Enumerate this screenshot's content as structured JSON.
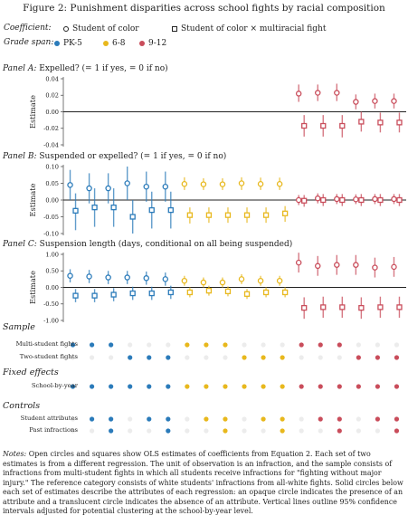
{
  "figure_title": "Figure 2: Punishment disparities across school fights by racial composition",
  "legend": {
    "coef_label": "Coefficient:",
    "coef_items": [
      {
        "label": "Student of color",
        "marker": "circle-open"
      },
      {
        "label": "Student of color × multiracial fight",
        "marker": "square-open"
      }
    ],
    "grade_label": "Grade span:",
    "grade_items": [
      {
        "label": "PK-5",
        "color": "#2b7bba"
      },
      {
        "label": "6-8",
        "color": "#e8b81d"
      },
      {
        "label": "9-12",
        "color": "#c94d5b"
      }
    ]
  },
  "panel_titles": [
    {
      "letter": "Panel A:",
      "text": " Expelled? (= 1 if yes, = 0 if no)"
    },
    {
      "letter": "Panel B:",
      "text": " Suspended or expelled? (= 1 if yes, = 0 if no)"
    },
    {
      "letter": "Panel C:",
      "text": " Suspension length (days, conditional on all being suspended)"
    }
  ],
  "chart_data": [
    {
      "type": "scatter",
      "panel": "A",
      "ylabel": "Estimate",
      "ylim": [
        -0.04,
        0.04
      ],
      "yticks": [
        -0.04,
        -0.02,
        0.0,
        0.02,
        0.04
      ],
      "ytick_labels": [
        "-0.04",
        "-0.02",
        "0.00",
        "0.02",
        "0.04"
      ],
      "groups": [
        "PK-5",
        "PK-5",
        "PK-5",
        "PK-5",
        "PK-5",
        "PK-5",
        "6-8",
        "6-8",
        "6-8",
        "6-8",
        "6-8",
        "6-8",
        "9-12",
        "9-12",
        "9-12",
        "9-12",
        "9-12",
        "9-12"
      ],
      "series": [
        {
          "name": "Student of color",
          "marker": "circle",
          "values": [
            null,
            null,
            null,
            null,
            null,
            null,
            null,
            null,
            null,
            null,
            null,
            null,
            0.022,
            0.023,
            0.023,
            0.012,
            0.013,
            0.013
          ],
          "ci_low": [
            null,
            null,
            null,
            null,
            null,
            null,
            null,
            null,
            null,
            null,
            null,
            null,
            0.012,
            0.013,
            0.013,
            0.003,
            0.004,
            0.004
          ],
          "ci_high": [
            null,
            null,
            null,
            null,
            null,
            null,
            null,
            null,
            null,
            null,
            null,
            null,
            0.033,
            0.033,
            0.034,
            0.021,
            0.022,
            0.022
          ]
        },
        {
          "name": "Student of color × multiracial fight",
          "marker": "square",
          "values": [
            null,
            null,
            null,
            null,
            null,
            null,
            null,
            null,
            null,
            null,
            null,
            null,
            -0.017,
            -0.017,
            -0.017,
            -0.012,
            -0.013,
            -0.013
          ],
          "ci_low": [
            null,
            null,
            null,
            null,
            null,
            null,
            null,
            null,
            null,
            null,
            null,
            null,
            -0.03,
            -0.03,
            -0.031,
            -0.024,
            -0.025,
            -0.025
          ],
          "ci_high": [
            null,
            null,
            null,
            null,
            null,
            null,
            null,
            null,
            null,
            null,
            null,
            null,
            -0.004,
            -0.004,
            -0.004,
            0.0,
            -0.001,
            -0.001
          ]
        }
      ]
    },
    {
      "type": "scatter",
      "panel": "B",
      "ylabel": "Estimate",
      "ylim": [
        -0.1,
        0.1
      ],
      "yticks": [
        -0.1,
        -0.05,
        0.0,
        0.05,
        0.1
      ],
      "ytick_labels": [
        "-0.10",
        "-0.05",
        "0.00",
        "0.05",
        "0.10"
      ],
      "groups": [
        "PK-5",
        "PK-5",
        "PK-5",
        "PK-5",
        "PK-5",
        "PK-5",
        "6-8",
        "6-8",
        "6-8",
        "6-8",
        "6-8",
        "6-8",
        "9-12",
        "9-12",
        "9-12",
        "9-12",
        "9-12",
        "9-12"
      ],
      "series": [
        {
          "name": "Student of color",
          "marker": "circle",
          "values": [
            0.045,
            0.035,
            0.035,
            0.05,
            0.04,
            0.04,
            0.048,
            0.047,
            0.047,
            0.05,
            0.048,
            0.048,
            0.0,
            0.005,
            0.003,
            0.002,
            0.003,
            0.003
          ],
          "ci_low": [
            0.0,
            -0.01,
            -0.01,
            0.0,
            -0.005,
            -0.005,
            0.03,
            0.03,
            0.03,
            0.03,
            0.03,
            0.03,
            -0.015,
            -0.01,
            -0.012,
            -0.012,
            -0.012,
            -0.012
          ],
          "ci_high": [
            0.09,
            0.08,
            0.08,
            0.1,
            0.085,
            0.085,
            0.068,
            0.065,
            0.065,
            0.068,
            0.067,
            0.067,
            0.015,
            0.02,
            0.018,
            0.017,
            0.018,
            0.018
          ]
        },
        {
          "name": "Student of color × multiracial fight",
          "marker": "square",
          "values": [
            -0.032,
            -0.022,
            -0.022,
            -0.05,
            -0.03,
            -0.03,
            -0.045,
            -0.045,
            -0.045,
            -0.045,
            -0.045,
            -0.04,
            -0.002,
            0.0,
            0.0,
            0.0,
            0.0,
            0.0
          ],
          "ci_low": [
            -0.09,
            -0.08,
            -0.08,
            -0.1,
            -0.085,
            -0.085,
            -0.07,
            -0.068,
            -0.068,
            -0.068,
            -0.068,
            -0.065,
            -0.02,
            -0.018,
            -0.018,
            -0.018,
            -0.018,
            -0.018
          ],
          "ci_high": [
            0.02,
            0.035,
            0.035,
            0.0,
            0.025,
            0.025,
            -0.022,
            -0.022,
            -0.022,
            -0.022,
            -0.022,
            -0.018,
            0.015,
            0.018,
            0.018,
            0.018,
            0.018,
            0.018
          ]
        }
      ]
    },
    {
      "type": "scatter",
      "panel": "C",
      "ylabel": "Estimate",
      "ylim": [
        -1.0,
        1.0
      ],
      "yticks": [
        -1.0,
        -0.5,
        0.0,
        0.5,
        1.0
      ],
      "ytick_labels": [
        "-1.00",
        "-0.50",
        "0.00",
        "0.50",
        "1.00"
      ],
      "groups": [
        "PK-5",
        "PK-5",
        "PK-5",
        "PK-5",
        "PK-5",
        "PK-5",
        "6-8",
        "6-8",
        "6-8",
        "6-8",
        "6-8",
        "6-8",
        "9-12",
        "9-12",
        "9-12",
        "9-12",
        "9-12",
        "9-12"
      ],
      "series": [
        {
          "name": "Student of color",
          "marker": "circle",
          "values": [
            0.35,
            0.33,
            0.3,
            0.3,
            0.28,
            0.25,
            0.2,
            0.15,
            0.15,
            0.25,
            0.2,
            0.2,
            0.75,
            0.65,
            0.68,
            0.68,
            0.6,
            0.62
          ],
          "ci_low": [
            0.15,
            0.13,
            0.1,
            0.1,
            0.08,
            0.05,
            0.05,
            0.0,
            0.0,
            0.1,
            0.05,
            0.05,
            0.45,
            0.35,
            0.38,
            0.38,
            0.3,
            0.32
          ],
          "ci_high": [
            0.55,
            0.53,
            0.5,
            0.5,
            0.48,
            0.45,
            0.35,
            0.3,
            0.3,
            0.4,
            0.35,
            0.35,
            1.05,
            0.95,
            0.98,
            0.98,
            0.9,
            0.92
          ]
        },
        {
          "name": "Student of color × multiracial fight",
          "marker": "square",
          "values": [
            -0.25,
            -0.25,
            -0.22,
            -0.18,
            -0.18,
            -0.15,
            -0.15,
            -0.1,
            -0.12,
            -0.2,
            -0.15,
            -0.15,
            -0.62,
            -0.6,
            -0.6,
            -0.62,
            -0.6,
            -0.6
          ],
          "ci_low": [
            -0.45,
            -0.45,
            -0.42,
            -0.38,
            -0.38,
            -0.35,
            -0.3,
            -0.25,
            -0.27,
            -0.35,
            -0.3,
            -0.3,
            -0.95,
            -0.92,
            -0.92,
            -0.95,
            -0.92,
            -0.92
          ],
          "ci_high": [
            -0.05,
            -0.05,
            -0.02,
            0.02,
            0.02,
            0.05,
            0.0,
            0.05,
            0.03,
            -0.05,
            0.0,
            0.0,
            -0.3,
            -0.28,
            -0.28,
            -0.3,
            -0.28,
            -0.28
          ]
        }
      ]
    }
  ],
  "spec_sections": [
    {
      "title": "Sample",
      "rows": [
        {
          "label": "Multi-student fights",
          "on": [
            1,
            1,
            1,
            0,
            0,
            0,
            1,
            1,
            1,
            0,
            0,
            0,
            1,
            1,
            1,
            0,
            0,
            0
          ]
        },
        {
          "label": "Two-student fights",
          "on": [
            0,
            0,
            0,
            1,
            1,
            1,
            0,
            0,
            0,
            1,
            1,
            1,
            0,
            0,
            0,
            1,
            1,
            1
          ]
        }
      ]
    },
    {
      "title": "Fixed effects",
      "rows": [
        {
          "label": "School-by-year",
          "on": [
            1,
            1,
            1,
            1,
            1,
            1,
            1,
            1,
            1,
            1,
            1,
            1,
            1,
            1,
            1,
            1,
            1,
            1
          ]
        }
      ]
    },
    {
      "title": "Controls",
      "rows": [
        {
          "label": "Student attributes",
          "on": [
            0,
            1,
            1,
            0,
            1,
            1,
            0,
            1,
            1,
            0,
            1,
            1,
            0,
            1,
            1,
            0,
            1,
            1
          ]
        },
        {
          "label": "Past infractions",
          "on": [
            0,
            0,
            1,
            0,
            0,
            1,
            0,
            0,
            1,
            0,
            0,
            1,
            0,
            0,
            1,
            0,
            0,
            1
          ]
        }
      ]
    }
  ],
  "notes": {
    "lead": "Notes:",
    "text": " Open circles and squares show OLS estimates of coefficients from Equation 2. Each set of two estimates is from a different regression. The unit of observation is an infraction, and the sample consists of infractions from multi-student fights in which all students receive infractions for \"fighting without major injury.\" The reference category consists of white students' infractions from all-white fights. Solid circles below each set of estimates describe the attributes of each regression: an opaque circle indicates the presence of an attribute and a translucent circle indicates the absence of an attribute. Vertical lines outline 95% confidence intervals adjusted for potential clustering at the school-by-year level."
  }
}
